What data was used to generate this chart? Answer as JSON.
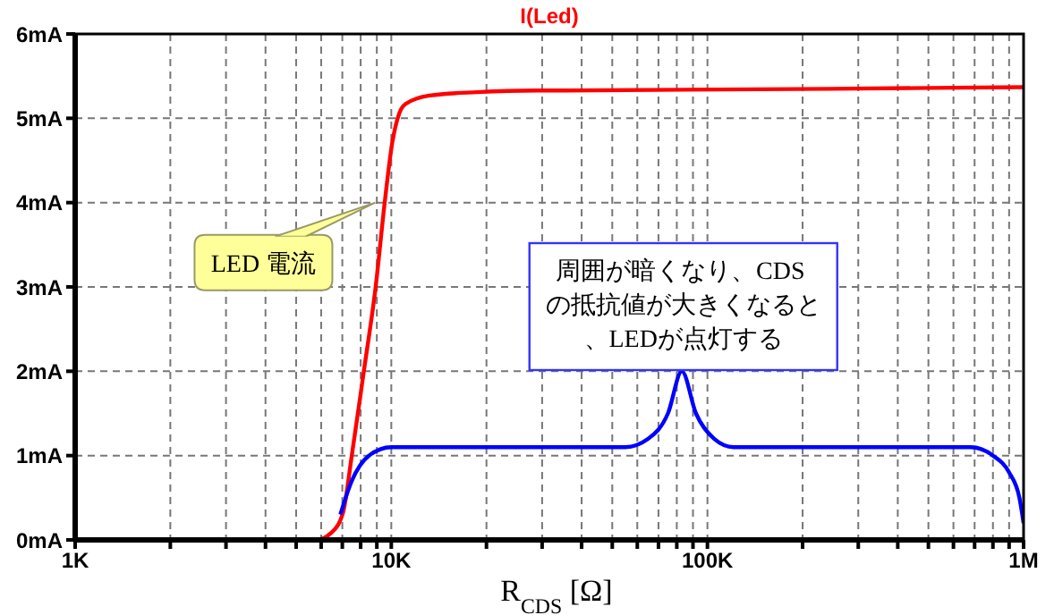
{
  "chart_data": {
    "type": "line",
    "title": "I(Led)",
    "xlabel": "R$_{CDS}$ [Ω]",
    "log": "x",
    "grid": true,
    "xlim": [
      1000,
      1000000
    ],
    "xticks": [
      {
        "value": 1000,
        "label": "1K"
      },
      {
        "value": 2000,
        "label": null
      },
      {
        "value": 3000,
        "label": null
      },
      {
        "value": 4000,
        "label": null
      },
      {
        "value": 5000,
        "label": null
      },
      {
        "value": 6000,
        "label": null
      },
      {
        "value": 7000,
        "label": null
      },
      {
        "value": 8000,
        "label": null
      },
      {
        "value": 9000,
        "label": null
      },
      {
        "value": 10000,
        "label": "10K"
      },
      {
        "value": 20000,
        "label": null
      },
      {
        "value": 30000,
        "label": null
      },
      {
        "value": 40000,
        "label": null
      },
      {
        "value": 50000,
        "label": null
      },
      {
        "value": 60000,
        "label": null
      },
      {
        "value": 70000,
        "label": null
      },
      {
        "value": 80000,
        "label": null
      },
      {
        "value": 90000,
        "label": null
      },
      {
        "value": 100000,
        "label": "100K"
      },
      {
        "value": 200000,
        "label": null
      },
      {
        "value": 300000,
        "label": null
      },
      {
        "value": 400000,
        "label": null
      },
      {
        "value": 500000,
        "label": null
      },
      {
        "value": 600000,
        "label": null
      },
      {
        "value": 700000,
        "label": null
      },
      {
        "value": 800000,
        "label": null
      },
      {
        "value": 900000,
        "label": null
      },
      {
        "value": 1000000,
        "label": "1M"
      }
    ],
    "ylim": [
      0,
      6
    ],
    "yticks": [
      {
        "value": 0,
        "label": "0mA"
      },
      {
        "value": 1,
        "label": "1mA"
      },
      {
        "value": 2,
        "label": "2mA"
      },
      {
        "value": 3,
        "label": "3mA"
      },
      {
        "value": 4,
        "label": "4mA"
      },
      {
        "value": 5,
        "label": "5mA"
      },
      {
        "value": 6,
        "label": "6mA"
      }
    ],
    "marker": "none",
    "series": [
      {
        "color": "#ff0000",
        "x": [
          1000,
          5800,
          6440,
          7030,
          7500,
          8180,
          8930,
          9530,
          10070,
          10600,
          11100,
          13200,
          18600,
          28800,
          35900,
          507000,
          1000000
        ],
        "values": [
          0,
          0,
          0.08,
          0.32,
          1.0,
          1.99,
          3.01,
          4.0,
          4.71,
          5.06,
          5.17,
          5.27,
          5.31,
          5.33,
          5.33,
          5.36,
          5.37
        ]
      },
      {
        "color": "#0000ff",
        "x": [
          6900,
          7500,
          8500,
          10000,
          55000,
          65000,
          75000,
          83000,
          92000,
          105000,
          121000,
          680000,
          800000,
          900000,
          970000,
          1000000
        ],
        "values": [
          0.3,
          0.7,
          1.0,
          1.1,
          1.1,
          1.2,
          1.5,
          2.0,
          1.5,
          1.2,
          1.1,
          1.1,
          1.0,
          0.8,
          0.5,
          0.2
        ]
      }
    ],
    "annotations": [
      {
        "text": "LED 電流",
        "x": 8900,
        "y": 4
      },
      "周囲が暗くなり、CDS の抵抗値が大きくなると、LEDが点灯する"
    ]
  }
}
